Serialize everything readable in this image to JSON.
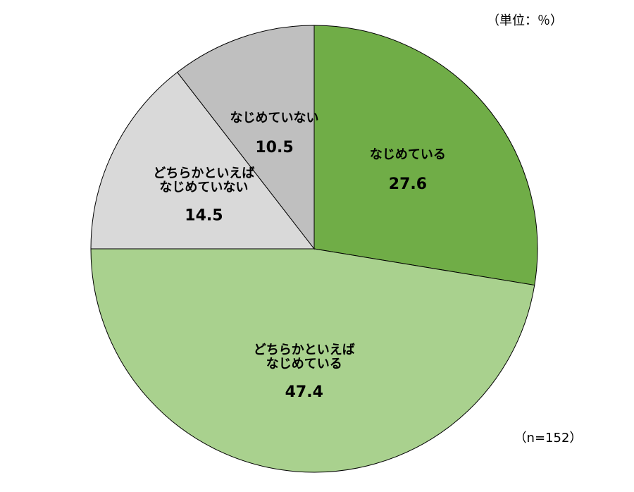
{
  "chart_data": {
    "type": "pie",
    "unit_note": "（単位：％）",
    "sample_note": "（n=152）",
    "categories": [
      "なじめている",
      "どちらかといえば\nなじめている",
      "どちらかといえば\nなじめていない",
      "なじめていない"
    ],
    "values": [
      27.6,
      47.4,
      14.5,
      10.5
    ],
    "colors": [
      "#70ad47",
      "#a9d18e",
      "#d9d9d9",
      "#bfbfbf"
    ]
  }
}
